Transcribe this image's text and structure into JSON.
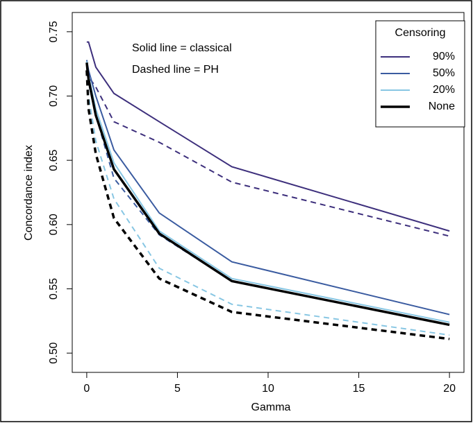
{
  "chart_data": {
    "type": "line",
    "x_label": "Gamma",
    "y_label": "Concordance index",
    "annotations": [
      "Solid line = classical",
      "Dashed line = PH"
    ],
    "legend_title": "Censoring",
    "legend_position": "top-right",
    "x": [
      0,
      0.1,
      0.5,
      1.5,
      4,
      8,
      20
    ],
    "series": [
      {
        "name": "90%",
        "color": "#3d2f7c",
        "width": 2,
        "values": [
          0.742,
          0.742,
          0.7225,
          0.702,
          0.68,
          0.645,
          0.595
        ],
        "dashed_values": [
          0.72,
          0.715,
          0.707,
          0.68,
          0.664,
          0.633,
          0.591
        ]
      },
      {
        "name": "50%",
        "color": "#3a5ba0",
        "width": 2,
        "values": [
          0.728,
          0.72,
          0.7,
          0.658,
          0.609,
          0.571,
          0.53
        ],
        "dashed_values": [
          0.722,
          0.71,
          0.685,
          0.636,
          0.592,
          0.556,
          0.522
        ]
      },
      {
        "name": "20%",
        "color": "#87c6e3",
        "width": 2,
        "values": [
          0.727,
          0.716,
          0.69,
          0.648,
          0.595,
          0.558,
          0.524
        ],
        "dashed_values": [
          0.72,
          0.7,
          0.665,
          0.62,
          0.566,
          0.538,
          0.514
        ]
      },
      {
        "name": "None",
        "color": "#000000",
        "width": 3.5,
        "values": [
          0.726,
          0.713,
          0.685,
          0.643,
          0.593,
          0.556,
          0.522
        ],
        "dashed_values": [
          0.72,
          0.69,
          0.655,
          0.605,
          0.558,
          0.532,
          0.511
        ]
      }
    ],
    "xlim": [
      -0.8,
      20.8
    ],
    "ylim": [
      0.485,
      0.765
    ],
    "xticks": [
      0,
      5,
      10,
      15,
      20
    ],
    "yticks": [
      {
        "value": 0.5,
        "label": "0.50"
      },
      {
        "value": 0.55,
        "label": "0.55"
      },
      {
        "value": 0.6,
        "label": "0.60"
      },
      {
        "value": 0.65,
        "label": "0.65"
      },
      {
        "value": 0.7,
        "label": "0.70"
      },
      {
        "value": 0.75,
        "label": "0.75"
      }
    ]
  }
}
